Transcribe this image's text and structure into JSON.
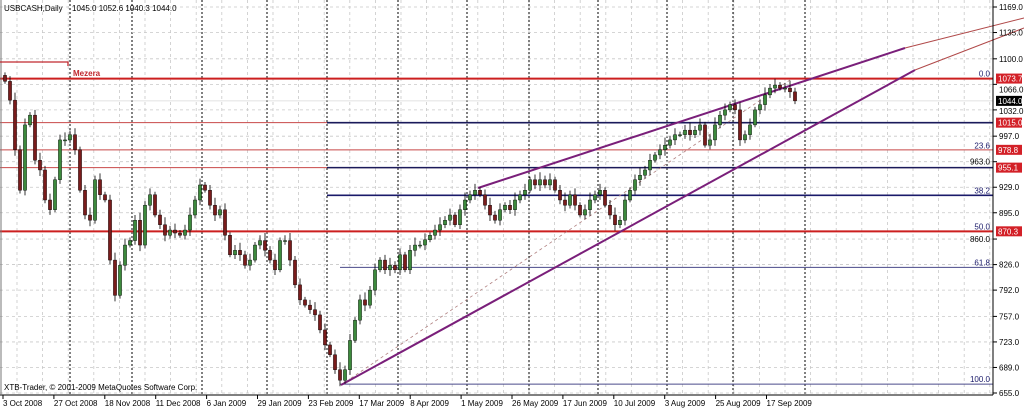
{
  "window": {
    "symbol_label": "USBCASH,Daily",
    "ohlc_label": "1045.0 1052.6 1040.3 1044.0",
    "copyright": "XTB-Trader, © 2001-2009 MetaQuotes Software Corp."
  },
  "annotation": {
    "text": "Mezera",
    "color": "#c0272d"
  },
  "chart_data": {
    "type": "candlestick",
    "title": "USBCASH,Daily",
    "ylim": [
      655.0,
      1169.0
    ],
    "y_ticks": [
      "1169.0",
      "1135.0",
      "1100.0",
      "1066.0",
      "1032.0",
      "997.0",
      "963.0",
      "929.0",
      "895.0",
      "860.0",
      "826.0",
      "792.0",
      "757.0",
      "723.0",
      "689.0",
      "655.0"
    ],
    "x_ticks": [
      "3 Oct 2008",
      "27 Oct 2008",
      "18 Nov 2008",
      "11 Dec 2008",
      "6 Jan 2009",
      "29 Jan 2009",
      "23 Feb 2009",
      "17 Mar 2009",
      "8 Apr 2009",
      "1 May 2009",
      "26 May 2009",
      "17 Jun 2009",
      "10 Jul 2009",
      "3 Aug 2009",
      "25 Aug 2009",
      "17 Sep 2009"
    ],
    "grid": true,
    "close": [
      1070,
      1045,
      979,
      925,
      1012,
      1025,
      965,
      952,
      912,
      899,
      939,
      992,
      992,
      999,
      979,
      925,
      892,
      885,
      939,
      919,
      912,
      832,
      785,
      825,
      852,
      858,
      885,
      852,
      905,
      919,
      892,
      879,
      865,
      872,
      868,
      865,
      872,
      892,
      912,
      932,
      925,
      905,
      892,
      899,
      865,
      839,
      845,
      839,
      825,
      832,
      852,
      858,
      845,
      832,
      819,
      858,
      858,
      832,
      799,
      779,
      772,
      766,
      759,
      739,
      719,
      706,
      686,
      672,
      686,
      725,
      752,
      779,
      772,
      792,
      819,
      832,
      819,
      825,
      819,
      839,
      819,
      845,
      852,
      852,
      859,
      865,
      872,
      879,
      885,
      892,
      879,
      899,
      912,
      919,
      925,
      919,
      905,
      892,
      885,
      899,
      905,
      899,
      912,
      919,
      925,
      939,
      932,
      939,
      932,
      939,
      925,
      912,
      905,
      919,
      905,
      892,
      899,
      912,
      919,
      925,
      905,
      892,
      879,
      885,
      912,
      925,
      939,
      945,
      952,
      965,
      972,
      979,
      985,
      992,
      999,
      999,
      1005,
      999,
      1005,
      1012,
      985,
      992,
      1012,
      1025,
      1032,
      1039,
      1032,
      992,
      999,
      1012,
      1032,
      1039,
      1052,
      1061,
      1065,
      1061,
      1061,
      1056,
      1044
    ],
    "last_price": "1044.0",
    "price_labels": [
      {
        "value": 1073.7,
        "text": "1073.7",
        "color": "#d32027"
      },
      {
        "value": 1015.0,
        "text": "1015.0",
        "color": "#d32027"
      },
      {
        "value": 978.8,
        "text": "978.8",
        "color": "#d32027"
      },
      {
        "value": 955.1,
        "text": "955.1",
        "color": "#d32027"
      },
      {
        "value": 870.3,
        "text": "870.3",
        "color": "#d32027"
      }
    ],
    "horizontal_lines": [
      {
        "value": 1073.7,
        "color": "#cc1f1f"
      },
      {
        "value": 1015.0,
        "color": "#c84848"
      },
      {
        "value": 978.8,
        "color": "#c84848"
      },
      {
        "value": 955.1,
        "color": "#c84848"
      },
      {
        "value": 870.3,
        "color": "#cc1f1f"
      },
      {
        "value": 1015.0,
        "color": "#1a1a5a"
      },
      {
        "value": 955.1,
        "color": "#1a1a5a"
      }
    ],
    "fibonacci": {
      "high": 1073.7,
      "low": 666.9,
      "color": "#1a1a6a",
      "levels": [
        {
          "pct": 0.0,
          "text": "0.0"
        },
        {
          "pct": 23.6,
          "text": "23.6"
        },
        {
          "pct": 38.2,
          "text": "38.2"
        },
        {
          "pct": 50.0,
          "text": "50.0"
        },
        {
          "pct": 61.8,
          "text": "61.8"
        },
        {
          "pct": 100.0,
          "text": "100.0"
        }
      ]
    },
    "colors": {
      "bull": "#3d8a3d",
      "bear": "#7a1c1c",
      "trendline": "#7a1f7a",
      "extension": "#b04848"
    }
  }
}
